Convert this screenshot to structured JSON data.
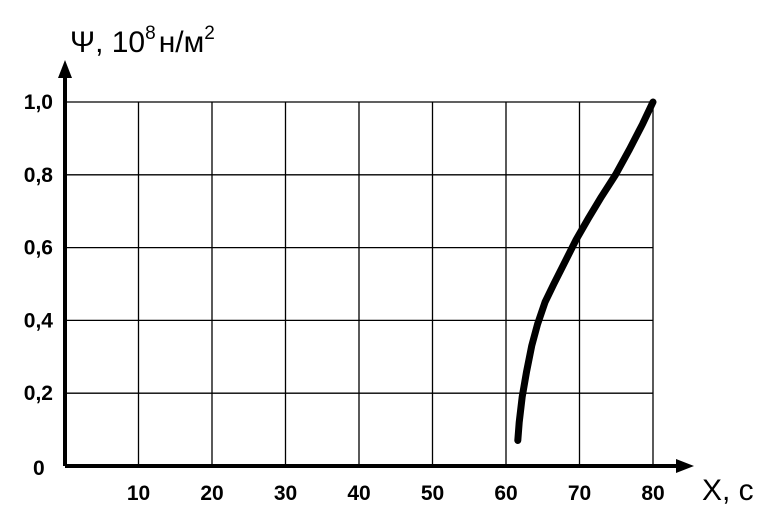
{
  "chart_data": {
    "type": "line",
    "ylabel": {
      "symbol": "Ψ, 10",
      "exp": "8",
      "unit": "н/м",
      "unit_exp": "2"
    },
    "xlabel": "X, с",
    "x_ticks": [
      "10",
      "20",
      "30",
      "40",
      "50",
      "60",
      "70",
      "80"
    ],
    "y_ticks": [
      "0",
      "0,2",
      "0,4",
      "0,6",
      "0,8",
      "1,0"
    ],
    "xlim": [
      0,
      80
    ],
    "ylim": [
      0,
      1.0
    ],
    "grid": true,
    "series": [
      {
        "x": [
          61.6,
          61.8,
          62.2,
          62.8,
          63.5,
          64.3,
          65.3,
          66.5,
          68.0,
          69.5,
          71.2,
          73.0,
          74.9,
          76.8,
          78.6,
          80.0
        ],
        "y": [
          0.07,
          0.12,
          0.19,
          0.26,
          0.33,
          0.39,
          0.45,
          0.5,
          0.56,
          0.62,
          0.68,
          0.74,
          0.8,
          0.87,
          0.94,
          1.0
        ]
      }
    ],
    "colors": {
      "line": "#000000",
      "grid": "#000000",
      "axis": "#000000"
    }
  }
}
